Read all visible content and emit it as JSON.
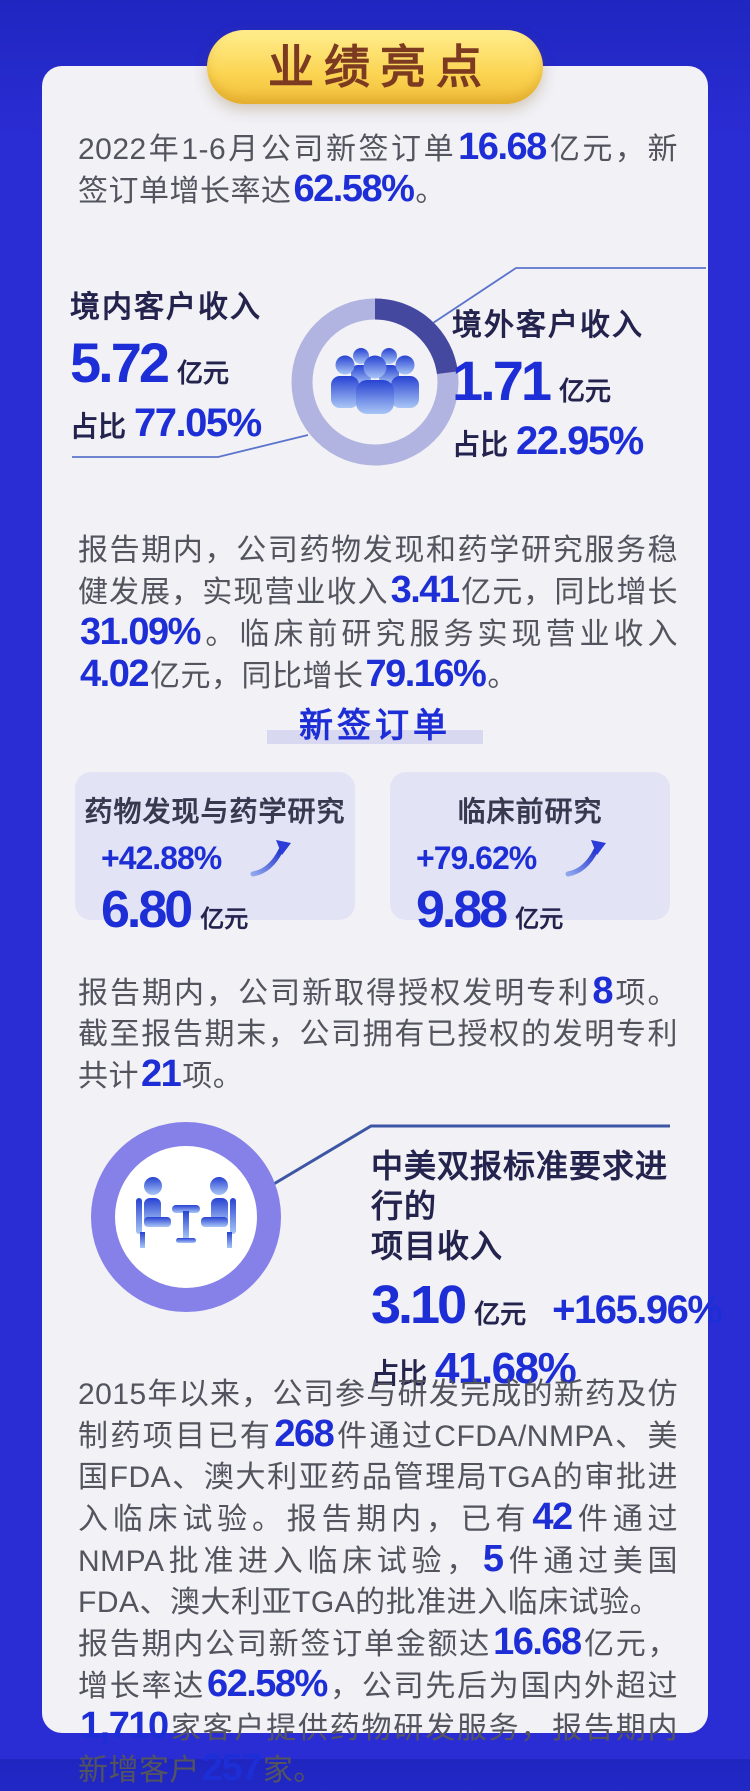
{
  "badge": {
    "label": "业绩亮点"
  },
  "colors": {
    "background": "#2b2dd4",
    "card": "#f1f1f6",
    "accent_blue": "#1e2ed6",
    "navy_text": "#23234d",
    "body_text": "#54545e",
    "donut_light": "#b1b3e1",
    "donut_dark": "#45489f",
    "circle_ring": "#8581e9",
    "badge_gradient_top": "#ffee8e",
    "badge_gradient_bottom": "#f0bd3a",
    "badge_text": "#7c3a21",
    "lavender_card": "#e3e3f6",
    "header_bar": "#d8d8f1"
  },
  "icons": {
    "donut_center": "people-group-icon",
    "dual_filing_circle": "meeting-icon",
    "order_growth": "arrow-up-right-icon"
  },
  "paragraphs": {
    "p1": [
      {
        "t": "2022年1-6月公司新签订单"
      },
      {
        "t": "16.68",
        "hl": true
      },
      {
        "t": "亿元，新签订单增长率达"
      },
      {
        "t": "62.58%",
        "hl": true
      },
      {
        "t": "。"
      }
    ],
    "p2": [
      {
        "t": "报告期内，公司药物发现和药学研究服务稳健发展，实现营业收入"
      },
      {
        "t": "3.41",
        "hl": true
      },
      {
        "t": "亿元，同比增长"
      },
      {
        "t": "31.09%",
        "hl": true
      },
      {
        "t": "。临床前研究服务实现营业收入"
      },
      {
        "t": "4.02",
        "hl": true
      },
      {
        "t": "亿元，同比增长"
      },
      {
        "t": "79.16%",
        "hl": true
      },
      {
        "t": "。"
      }
    ],
    "p3": [
      {
        "t": "报告期内，公司新取得授权发明专利"
      },
      {
        "t": "8",
        "hl": true
      },
      {
        "t": "项。截至报告期末，公司拥有已授权的发明专利共计"
      },
      {
        "t": "21",
        "hl": true
      },
      {
        "t": "项。"
      }
    ],
    "p4": [
      {
        "t": "2015年以来，公司参与研发完成的新药及仿制药项目已有"
      },
      {
        "t": "268",
        "hl": true
      },
      {
        "t": "件通过CFDA/NMPA、美国FDA、澳大利亚药品管理局TGA的审批进入临床试验。报告期内，已有"
      },
      {
        "t": "42",
        "hl": true
      },
      {
        "t": "件通过NMPA批准进入临床试验，"
      },
      {
        "t": "5",
        "hl": true
      },
      {
        "t": "件通过美国FDA、澳大利亚TGA的批准进入临床试验。"
      }
    ],
    "p5": [
      {
        "t": "报告期内公司新签订单金额达"
      },
      {
        "t": "16.68",
        "hl": true
      },
      {
        "t": "亿元，增长率达"
      },
      {
        "t": "62.58%",
        "hl": true
      },
      {
        "t": "，公司先后为国内外超过"
      },
      {
        "t": "1,710",
        "hl": true
      },
      {
        "t": "家客户提供药物研发服务，报告期内新增客户"
      },
      {
        "t": "257",
        "hl": true
      },
      {
        "t": "家。"
      }
    ]
  },
  "revenue_split": {
    "domestic": {
      "label": "境内客户收入",
      "value": "5.72",
      "unit": "亿元",
      "share_prefix": "占比",
      "share": "77.05%"
    },
    "overseas": {
      "label": "境外客户收入",
      "value": "1.71",
      "unit": "亿元",
      "share_prefix": "占比",
      "share": "22.95%"
    },
    "chart_data": {
      "type": "pie",
      "labels": [
        "境内客户收入",
        "境外客户收入"
      ],
      "values": [
        77.05,
        22.95
      ],
      "unit": "%",
      "colors": [
        "#b1b3e1",
        "#45489f"
      ],
      "note": "donut chart, dark segment = overseas 22.95% starting at 12 o'clock clockwise"
    }
  },
  "new_orders": {
    "title": "新签订单",
    "cards": [
      {
        "title": "药物发现与药学研究",
        "growth": "+42.88%",
        "value": "6.80",
        "unit": "亿元"
      },
      {
        "title": "临床前研究",
        "growth": "+79.62%",
        "value": "9.88",
        "unit": "亿元"
      }
    ]
  },
  "dual_filing": {
    "title_line1": "中美双报标准要求进行的",
    "title_line2": "项目收入",
    "value": "3.10",
    "unit": "亿元",
    "growth": "+165.96%",
    "share_prefix": "占比",
    "share": "41.68%"
  }
}
